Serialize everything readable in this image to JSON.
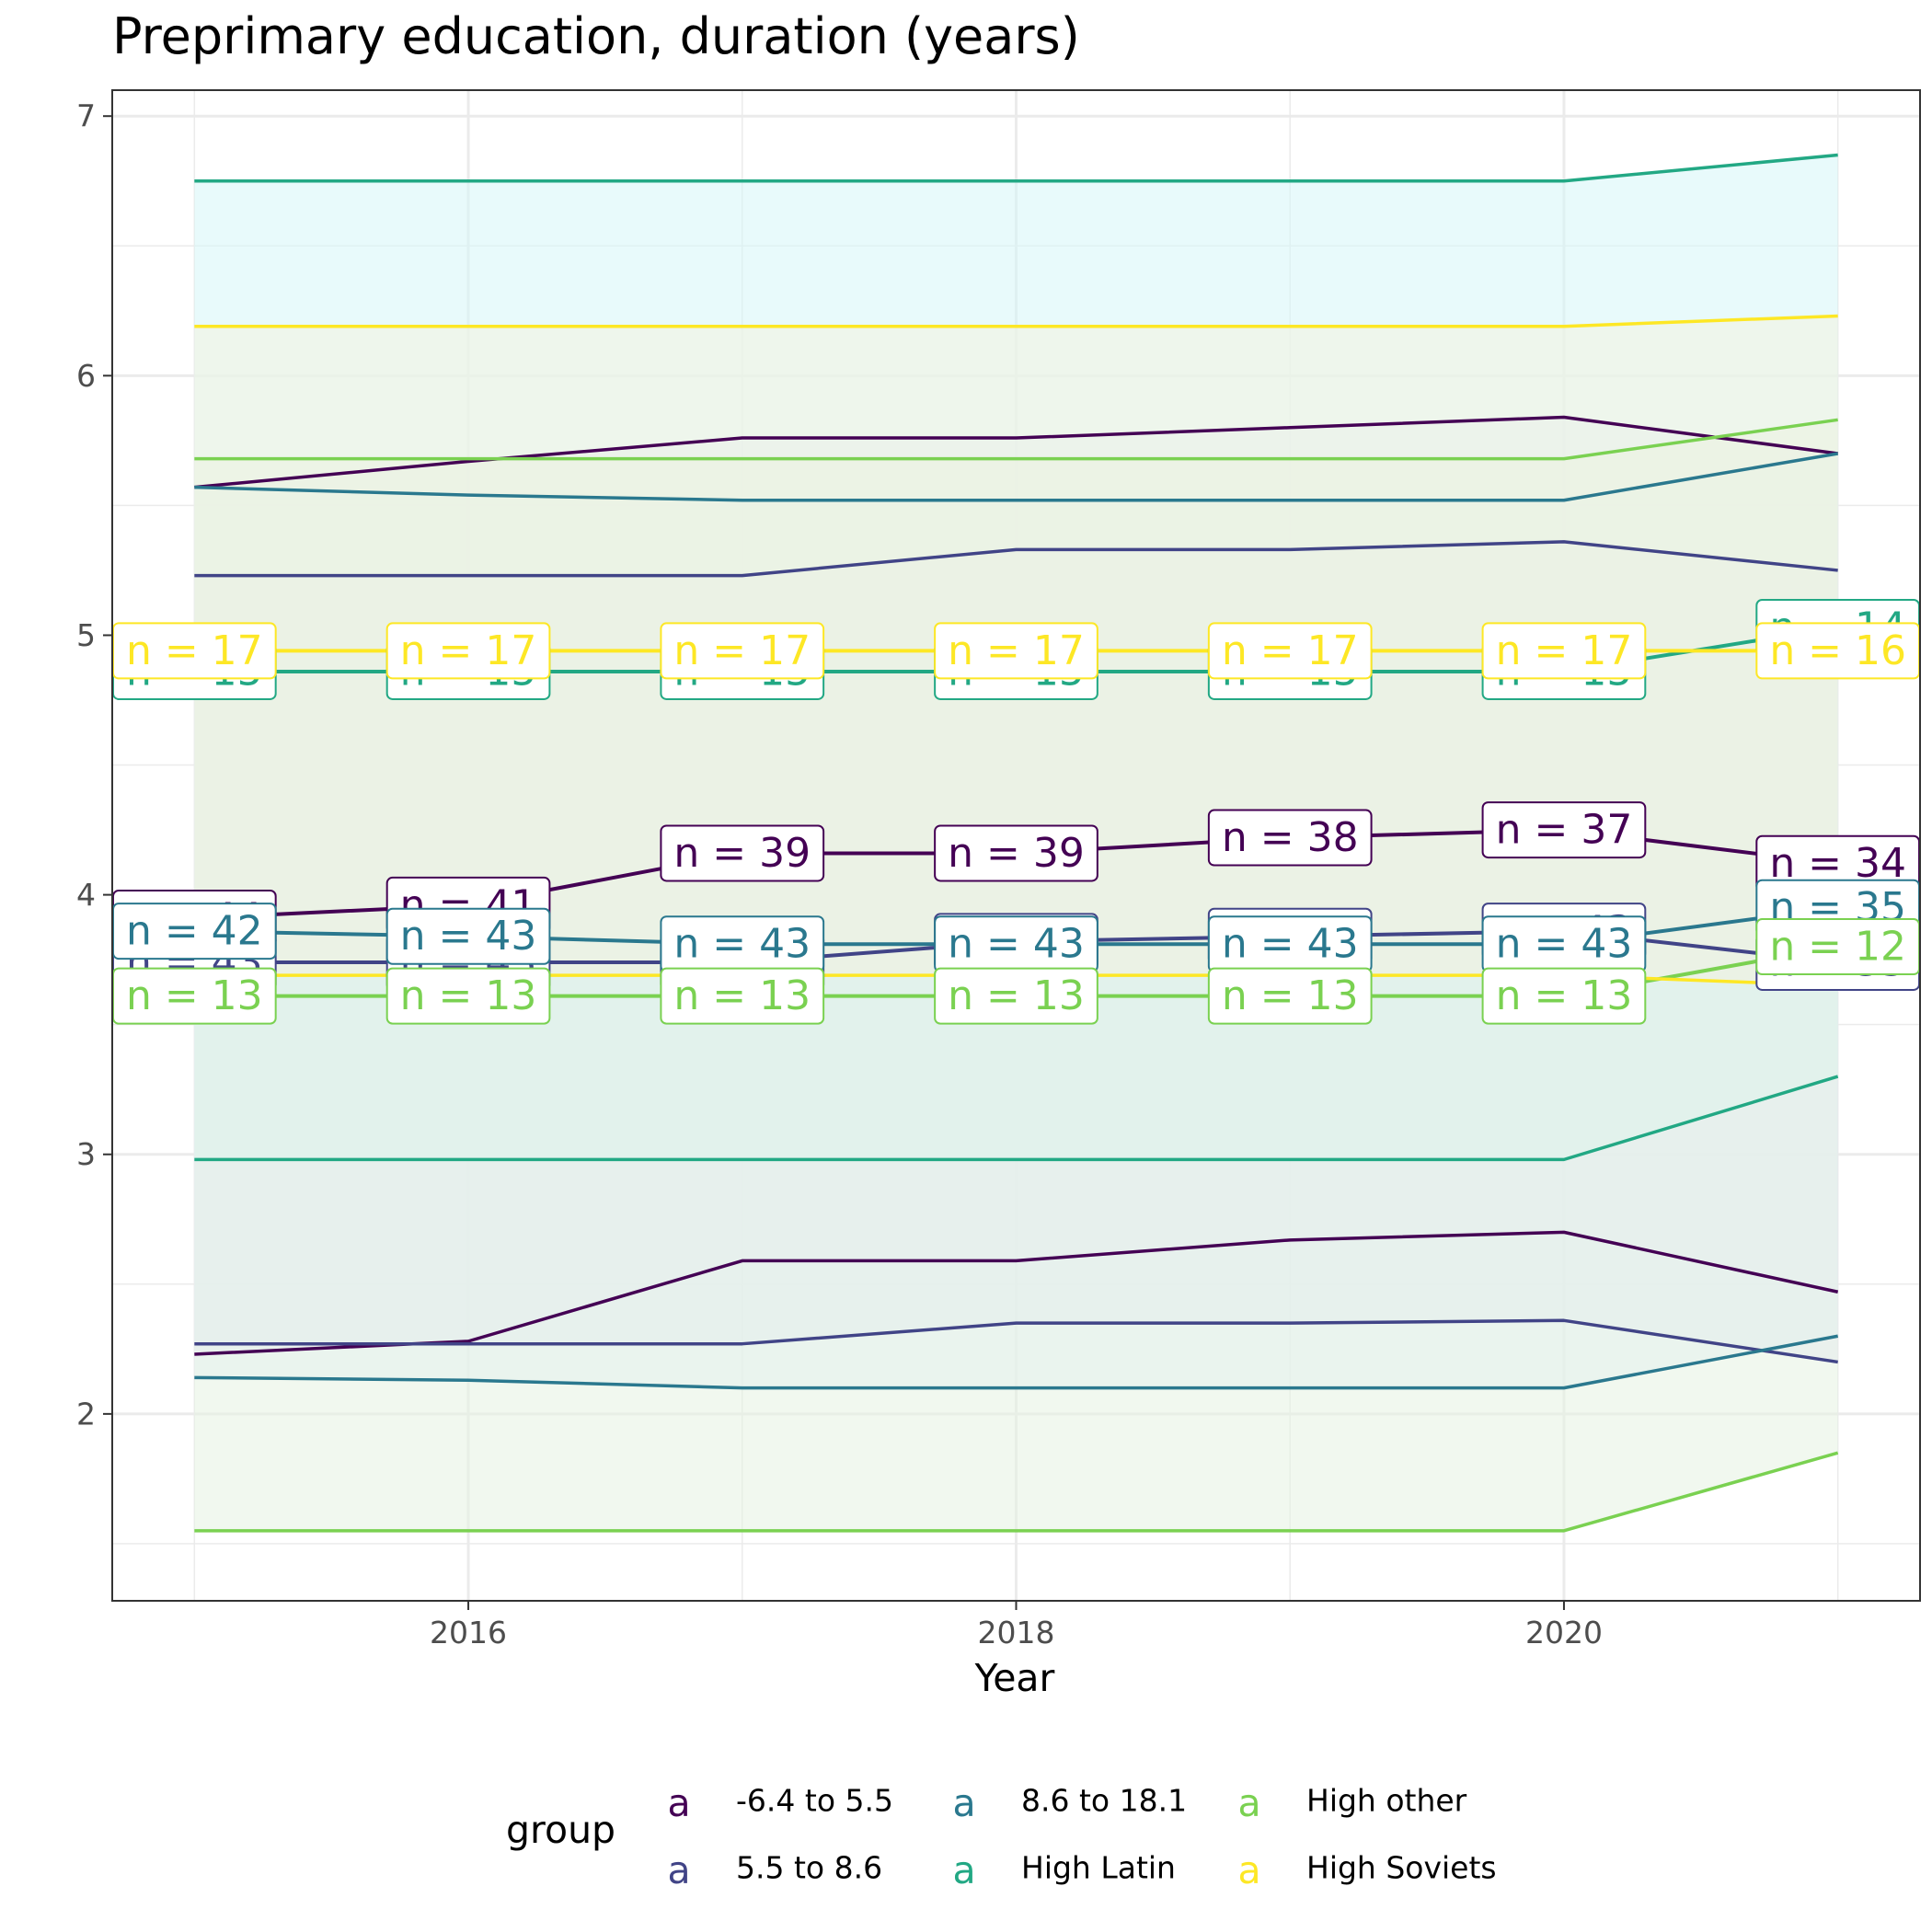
{
  "chart_data": {
    "type": "line",
    "title": "Preprimary education, duration (years)",
    "xlabel": "Year",
    "ylabel": "",
    "xlim": [
      2014.7,
      2021.3
    ],
    "ylim": [
      1.28,
      7.1
    ],
    "x_ticks": [
      2016,
      2018,
      2020
    ],
    "y_ticks": [
      2,
      3,
      4,
      5,
      6,
      7
    ],
    "grid": true,
    "legend_position": "bottom",
    "legend_title": "group",
    "x": [
      2015,
      2016,
      2017,
      2018,
      2019,
      2020,
      2021
    ],
    "series": [
      {
        "name": "-6.4 to 5.5",
        "color": "#440154",
        "ribbon_color": "#f2e6f5",
        "mean": [
          3.91,
          3.96,
          4.16,
          4.16,
          4.22,
          4.25,
          4.12
        ],
        "upper": [
          5.57,
          5.67,
          5.76,
          5.76,
          5.8,
          5.84,
          5.7
        ],
        "lower": [
          2.23,
          2.28,
          2.59,
          2.59,
          2.67,
          2.7,
          2.47
        ],
        "n": [
          44,
          41,
          39,
          39,
          38,
          37,
          34
        ]
      },
      {
        "name": "5.5 to 8.6",
        "color": "#414487",
        "ribbon_color": "#e3e3f7",
        "mean": [
          3.74,
          3.74,
          3.74,
          3.82,
          3.84,
          3.86,
          3.74
        ],
        "upper": [
          5.23,
          5.23,
          5.23,
          5.33,
          5.33,
          5.36,
          5.25
        ],
        "lower": [
          2.27,
          2.27,
          2.27,
          2.35,
          2.35,
          2.36,
          2.2
        ],
        "n": [
          43,
          43,
          43,
          43,
          43,
          43,
          35
        ]
      },
      {
        "name": "8.6 to 18.1",
        "color": "#2a788e",
        "ribbon_color": "#e3eefb",
        "mean": [
          3.86,
          3.84,
          3.81,
          3.81,
          3.81,
          3.81,
          3.95
        ],
        "upper": [
          5.57,
          5.54,
          5.52,
          5.52,
          5.52,
          5.52,
          5.7
        ],
        "lower": [
          2.14,
          2.13,
          2.1,
          2.1,
          2.1,
          2.1,
          2.3
        ],
        "n": [
          42,
          43,
          43,
          43,
          43,
          43,
          35
        ]
      },
      {
        "name": "High Latin",
        "color": "#22a884",
        "ribbon_color": "#d6f5f7",
        "mean": [
          4.86,
          4.86,
          4.86,
          4.86,
          4.86,
          4.86,
          5.03
        ],
        "upper": [
          6.75,
          6.75,
          6.75,
          6.75,
          6.75,
          6.75,
          6.85
        ],
        "lower": [
          2.98,
          2.98,
          2.98,
          2.98,
          2.98,
          2.98,
          3.3
        ],
        "n": [
          15,
          15,
          15,
          15,
          15,
          15,
          14
        ]
      },
      {
        "name": "High other",
        "color": "#7ad151",
        "ribbon_color": "#e6f2e1",
        "mean": [
          3.61,
          3.61,
          3.61,
          3.61,
          3.61,
          3.61,
          3.8
        ],
        "upper": [
          5.68,
          5.68,
          5.68,
          5.68,
          5.68,
          5.68,
          5.83
        ],
        "lower": [
          1.55,
          1.55,
          1.55,
          1.55,
          1.55,
          1.55,
          1.85
        ],
        "n": [
          13,
          13,
          13,
          13,
          13,
          13,
          12
        ]
      },
      {
        "name": "High Soviets",
        "color": "#fde725",
        "ribbon_color": "#f2f2e0",
        "mean": [
          4.94,
          4.94,
          4.94,
          4.94,
          4.94,
          4.94,
          4.94
        ],
        "upper": [
          6.19,
          6.19,
          6.19,
          6.19,
          6.19,
          6.19,
          6.23
        ],
        "lower": [
          3.69,
          3.69,
          3.69,
          3.69,
          3.69,
          3.69,
          3.65
        ],
        "n": [
          17,
          17,
          17,
          17,
          17,
          17,
          16
        ]
      }
    ],
    "label_prefix": "n = ",
    "legend_key_glyph": "a"
  }
}
